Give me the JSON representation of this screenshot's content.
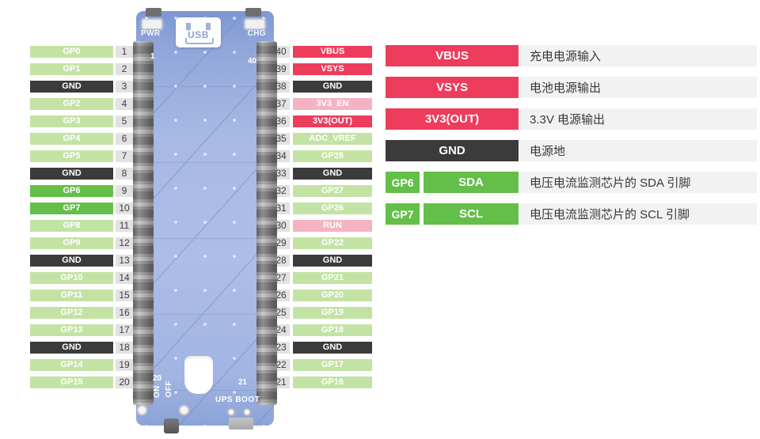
{
  "colors": {
    "gpio": "#c3e3a4",
    "i2c": "#63bf49",
    "ground": "#3b3b3b",
    "power": "#ee3c5c",
    "ctrl": "#f5b3c2",
    "num_bg": "#e2e2e2",
    "desc_bg": "#f2f2f2",
    "board_blue": "#a3b6e4",
    "header_gray": "#9e9e9e"
  },
  "board": {
    "pwr_label": "PWR",
    "chg_label": "CHG",
    "usb_label": "USB",
    "pin1": "1",
    "pin40": "40",
    "pin20": "20",
    "pin21": "21",
    "on_label": "ON",
    "off_label": "OFF",
    "ups_boot_label": "UPS BOOT"
  },
  "left_pins": [
    {
      "num": "1",
      "label": "GP0",
      "type": "gpio"
    },
    {
      "num": "2",
      "label": "GP1",
      "type": "gpio"
    },
    {
      "num": "3",
      "label": "GND",
      "type": "ground"
    },
    {
      "num": "4",
      "label": "GP2",
      "type": "gpio"
    },
    {
      "num": "5",
      "label": "GP3",
      "type": "gpio"
    },
    {
      "num": "6",
      "label": "GP4",
      "type": "gpio"
    },
    {
      "num": "7",
      "label": "GP5",
      "type": "gpio"
    },
    {
      "num": "8",
      "label": "GND",
      "type": "ground"
    },
    {
      "num": "9",
      "label": "GP6",
      "type": "i2c"
    },
    {
      "num": "10",
      "label": "GP7",
      "type": "i2c"
    },
    {
      "num": "11",
      "label": "GP8",
      "type": "gpio"
    },
    {
      "num": "12",
      "label": "GP9",
      "type": "gpio"
    },
    {
      "num": "13",
      "label": "GND",
      "type": "ground"
    },
    {
      "num": "14",
      "label": "GP10",
      "type": "gpio"
    },
    {
      "num": "15",
      "label": "GP11",
      "type": "gpio"
    },
    {
      "num": "16",
      "label": "GP12",
      "type": "gpio"
    },
    {
      "num": "17",
      "label": "GP13",
      "type": "gpio"
    },
    {
      "num": "18",
      "label": "GND",
      "type": "ground"
    },
    {
      "num": "19",
      "label": "GP14",
      "type": "gpio"
    },
    {
      "num": "20",
      "label": "GP15",
      "type": "gpio"
    }
  ],
  "right_pins": [
    {
      "num": "40",
      "label": "VBUS",
      "type": "power"
    },
    {
      "num": "39",
      "label": "VSYS",
      "type": "power"
    },
    {
      "num": "38",
      "label": "GND",
      "type": "ground"
    },
    {
      "num": "37",
      "label": "3V3_EN",
      "type": "ctrl"
    },
    {
      "num": "36",
      "label": "3V3(OUT)",
      "type": "power"
    },
    {
      "num": "35",
      "label": "ADC_VREF",
      "type": "gpio"
    },
    {
      "num": "34",
      "label": "GP28",
      "type": "gpio"
    },
    {
      "num": "33",
      "label": "GND",
      "type": "ground"
    },
    {
      "num": "32",
      "label": "GP27",
      "type": "gpio"
    },
    {
      "num": "31",
      "label": "GP26",
      "type": "gpio"
    },
    {
      "num": "30",
      "label": "RUN",
      "type": "ctrl"
    },
    {
      "num": "29",
      "label": "GP22",
      "type": "gpio"
    },
    {
      "num": "28",
      "label": "GND",
      "type": "ground"
    },
    {
      "num": "27",
      "label": "GP21",
      "type": "gpio"
    },
    {
      "num": "26",
      "label": "GP20",
      "type": "gpio"
    },
    {
      "num": "25",
      "label": "GP19",
      "type": "gpio"
    },
    {
      "num": "24",
      "label": "GP18",
      "type": "gpio"
    },
    {
      "num": "23",
      "label": "GND",
      "type": "ground"
    },
    {
      "num": "22",
      "label": "GP17",
      "type": "gpio"
    },
    {
      "num": "21",
      "label": "GP16",
      "type": "gpio"
    }
  ],
  "legend": [
    {
      "pin": "",
      "label": "VBUS",
      "type": "power",
      "desc": "充电电源输入"
    },
    {
      "pin": "",
      "label": "VSYS",
      "type": "power",
      "desc": "电池电源输出"
    },
    {
      "pin": "",
      "label": "3V3(OUT)",
      "type": "power",
      "desc": "3.3V 电源输出"
    },
    {
      "pin": "",
      "label": "GND",
      "type": "ground",
      "desc": "电源地"
    },
    {
      "pin": "GP6",
      "label": "SDA",
      "type": "i2c",
      "desc": "电压电流监测芯片的 SDA 引脚"
    },
    {
      "pin": "GP7",
      "label": "SCL",
      "type": "i2c",
      "desc": "电压电流监测芯片的 SCL 引脚"
    }
  ]
}
